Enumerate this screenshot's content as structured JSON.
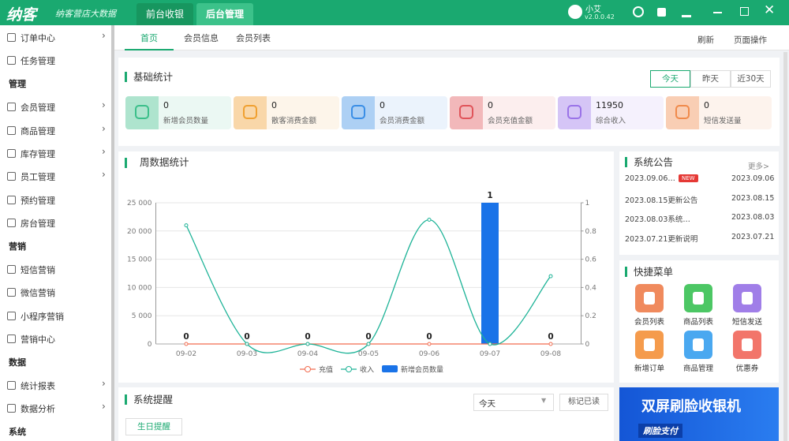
{
  "header": {
    "logo": "纳客",
    "slogan": "纳客营店大数据",
    "tabs": [
      "前台收银",
      "后台管理"
    ],
    "user_name": "小艾",
    "version": "v2.0.0.42"
  },
  "sidebar": {
    "items": [
      {
        "label": "订单中心",
        "arrow": true
      },
      {
        "label": "任务管理",
        "arrow": false
      },
      {
        "label": "管理",
        "section": true
      },
      {
        "label": "会员管理",
        "arrow": true
      },
      {
        "label": "商品管理",
        "arrow": true
      },
      {
        "label": "库存管理",
        "arrow": true
      },
      {
        "label": "员工管理",
        "arrow": true
      },
      {
        "label": "预约管理",
        "arrow": false
      },
      {
        "label": "房台管理",
        "arrow": false
      },
      {
        "label": "营销",
        "section": true
      },
      {
        "label": "短信营销",
        "arrow": false
      },
      {
        "label": "微信营销",
        "arrow": false
      },
      {
        "label": "小程序营销",
        "arrow": false
      },
      {
        "label": "营销中心",
        "arrow": false
      },
      {
        "label": "数据",
        "section": true
      },
      {
        "label": "统计报表",
        "arrow": true
      },
      {
        "label": "数据分析",
        "arrow": true
      },
      {
        "label": "系统",
        "section": true
      }
    ]
  },
  "tabs": {
    "items": [
      "首页",
      "会员信息",
      "会员列表"
    ],
    "actions": [
      "刷新",
      "页面操作"
    ]
  },
  "basic_stats": {
    "title": "基础统计",
    "periods": [
      "今天",
      "昨天",
      "近30天"
    ],
    "cards": [
      {
        "value": 0,
        "label": "新增会员数量",
        "color": "#3bbf8a"
      },
      {
        "value": 0,
        "label": "散客消费金额",
        "color": "#f0a030"
      },
      {
        "value": 0,
        "label": "会员消费金额",
        "color": "#3a8ee6"
      },
      {
        "value": 0,
        "label": "会员充值金额",
        "color": "#e0545a"
      },
      {
        "value": 11950,
        "label": "综合收入",
        "color": "#9a73e8"
      },
      {
        "value": 0,
        "label": "短信发送量",
        "color": "#f08a4b"
      }
    ]
  },
  "chart_data": {
    "type": "line",
    "title": "周数据统计",
    "categories": [
      "09-02",
      "09-03",
      "09-04",
      "09-05",
      "09-06",
      "09-07",
      "09-08"
    ],
    "series": [
      {
        "name": "充值",
        "type": "line",
        "color": "#f26c4f",
        "values": [
          0,
          0,
          0,
          0,
          0,
          0,
          0
        ]
      },
      {
        "name": "收入",
        "type": "line",
        "color": "#1db397",
        "values": [
          21000,
          0,
          0,
          0,
          22000,
          0,
          12000
        ]
      },
      {
        "name": "新增会员数量",
        "type": "bar",
        "axis": "y2",
        "color": "#1a73e8",
        "values": [
          0,
          0,
          0,
          0,
          0,
          1,
          0
        ]
      }
    ],
    "ylim": [
      0,
      25000
    ],
    "yticks": [
      0,
      {
        "value": 5000,
        "label": "5 000"
      },
      {
        "value": 10000,
        "label": "10 000"
      },
      {
        "value": 15000,
        "label": "15 000"
      },
      {
        "value": 20000,
        "label": "20 000"
      },
      {
        "value": 25000,
        "label": "25 000"
      }
    ],
    "y2lim": [
      0,
      1
    ],
    "y2ticks": [
      0,
      0.2,
      0.4,
      0.6,
      0.8,
      1
    ],
    "grid": true,
    "legend": "bottom",
    "smooth": true
  },
  "notices": {
    "title": "系统公告",
    "more": "更多>",
    "badge": "NEW",
    "items": [
      {
        "title": "2023.09.06…",
        "date": "2023.09.06",
        "new": true
      },
      {
        "title": "2023.08.15更新公告",
        "date": "2023.08.15",
        "new": false
      },
      {
        "title": "2023.08.03系统…",
        "date": "2023.08.03",
        "new": false
      },
      {
        "title": "2023.07.21更新说明",
        "date": "2023.07.21",
        "new": false
      }
    ]
  },
  "quick_menu": {
    "title": "快捷菜单",
    "items": [
      {
        "label": "会员列表",
        "color": "#f08a5d"
      },
      {
        "label": "商品列表",
        "color": "#4cc764"
      },
      {
        "label": "短信发送",
        "color": "#a07ee8"
      },
      {
        "label": "新增订单",
        "color": "#f59b4c"
      },
      {
        "label": "商品管理",
        "color": "#4aa8f0"
      },
      {
        "label": "优惠券",
        "color": "#f2756a"
      }
    ]
  },
  "reminders": {
    "title": "系统提醒",
    "select": "今天",
    "button": "标记已读",
    "tabs": [
      "生日提醒"
    ]
  },
  "banner": {
    "title": "双屏刷脸收银机",
    "subtitle": "刷脸支付"
  }
}
